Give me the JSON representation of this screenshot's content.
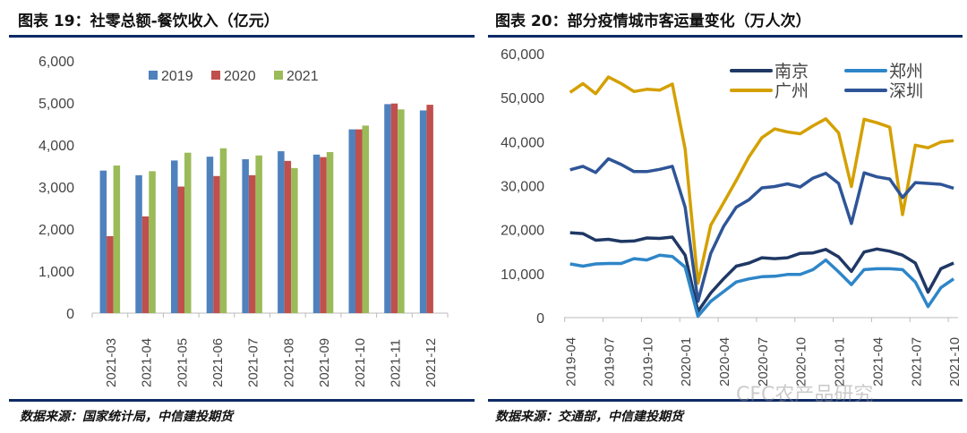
{
  "left": {
    "title": "图表 19：社零总额-餐饮收入（亿元）",
    "source": "数据来源：国家统计局，中信建投期货"
  },
  "right": {
    "title": "图表 20：部分疫情城市客运量变化（万人次）",
    "source": "数据来源：交通部，中信建投期货"
  },
  "watermark": "CFC农产品研究",
  "rule_color": "#0d2a66",
  "chart_data": [
    {
      "type": "bar",
      "title": "图表 19：社零总额-餐饮收入（亿元）",
      "categories": [
        "2021-03",
        "2021-04",
        "2021-05",
        "2021-06",
        "2021-07",
        "2021-08",
        "2021-09",
        "2021-10",
        "2021-11",
        "2021-12"
      ],
      "ylim": [
        0,
        6000
      ],
      "yticks": [
        "0",
        "1,000",
        "2,000",
        "3,000",
        "4,000",
        "5,000",
        "6,000"
      ],
      "grid": false,
      "legend": "top",
      "series": [
        {
          "name": "2019",
          "color": "#4f81bd",
          "values": [
            3390,
            3280,
            3630,
            3720,
            3660,
            3850,
            3770,
            4370,
            4970,
            4820
          ]
        },
        {
          "name": "2020",
          "color": "#c0504d",
          "values": [
            1830,
            2300,
            3010,
            3260,
            3280,
            3620,
            3710,
            4370,
            4985,
            4955
          ]
        },
        {
          "name": "2021",
          "color": "#9bbb59",
          "values": [
            3510,
            3375,
            3815,
            3920,
            3750,
            3450,
            3830,
            4460,
            4845,
            null
          ]
        }
      ]
    },
    {
      "type": "line",
      "title": "图表 20：部分疫情城市客运量变化（万人次）",
      "x": [
        "2019-04",
        "2019-05",
        "2019-06",
        "2019-07",
        "2019-08",
        "2019-09",
        "2019-10",
        "2019-11",
        "2019-12",
        "2020-01",
        "2020-02",
        "2020-03",
        "2020-04",
        "2020-05",
        "2020-06",
        "2020-07",
        "2020-08",
        "2020-09",
        "2020-10",
        "2020-11",
        "2020-12",
        "2021-01",
        "2021-02",
        "2021-03",
        "2021-04",
        "2021-05",
        "2021-06",
        "2021-07",
        "2021-08",
        "2021-09",
        "2021-10"
      ],
      "xticks": [
        "2019-04",
        "2019-07",
        "2019-10",
        "2020-01",
        "2020-04",
        "2020-07",
        "2020-10",
        "2021-01",
        "2021-04",
        "2021-07",
        "2021-10"
      ],
      "ylim": [
        0,
        60000
      ],
      "yticks": [
        "0",
        "10,000",
        "20,000",
        "30,000",
        "40,000",
        "50,000",
        "60,000"
      ],
      "grid": false,
      "legend": "top-right",
      "series": [
        {
          "name": "南京",
          "color": "#1f3864",
          "values": [
            19300,
            19100,
            17600,
            17800,
            17300,
            17400,
            18100,
            18000,
            18300,
            14200,
            1400,
            5600,
            8800,
            11700,
            12400,
            13600,
            13400,
            13600,
            14600,
            14700,
            15500,
            13800,
            10500,
            14900,
            15600,
            15100,
            14200,
            12400,
            5800,
            11100,
            12400
          ]
        },
        {
          "name": "郑州",
          "color": "#2e86c8",
          "values": [
            12200,
            11700,
            12200,
            12300,
            12300,
            13400,
            13100,
            14200,
            13900,
            11500,
            300,
            3700,
            5900,
            8100,
            8800,
            9300,
            9400,
            9800,
            9800,
            10900,
            13100,
            10400,
            7500,
            10900,
            11100,
            11100,
            10900,
            8100,
            2500,
            6800,
            8800
          ]
        },
        {
          "name": "广州",
          "color": "#d4a000",
          "values": [
            51200,
            53200,
            50900,
            54700,
            53200,
            51400,
            51900,
            51700,
            53100,
            38300,
            7800,
            21000,
            26100,
            31200,
            36600,
            40900,
            42900,
            42200,
            41800,
            43600,
            45200,
            42000,
            29800,
            45100,
            44300,
            43300,
            23400,
            39200,
            38600,
            39900,
            40200
          ]
        },
        {
          "name": "深圳",
          "color": "#2f5597",
          "values": [
            33600,
            34400,
            33000,
            36100,
            34800,
            33200,
            33200,
            33700,
            34400,
            25100,
            3700,
            14600,
            20700,
            25100,
            26800,
            29500,
            29800,
            30400,
            29700,
            31700,
            32800,
            30500,
            21400,
            32900,
            32000,
            31500,
            27300,
            30700,
            30500,
            30300,
            29400
          ]
        }
      ]
    }
  ]
}
